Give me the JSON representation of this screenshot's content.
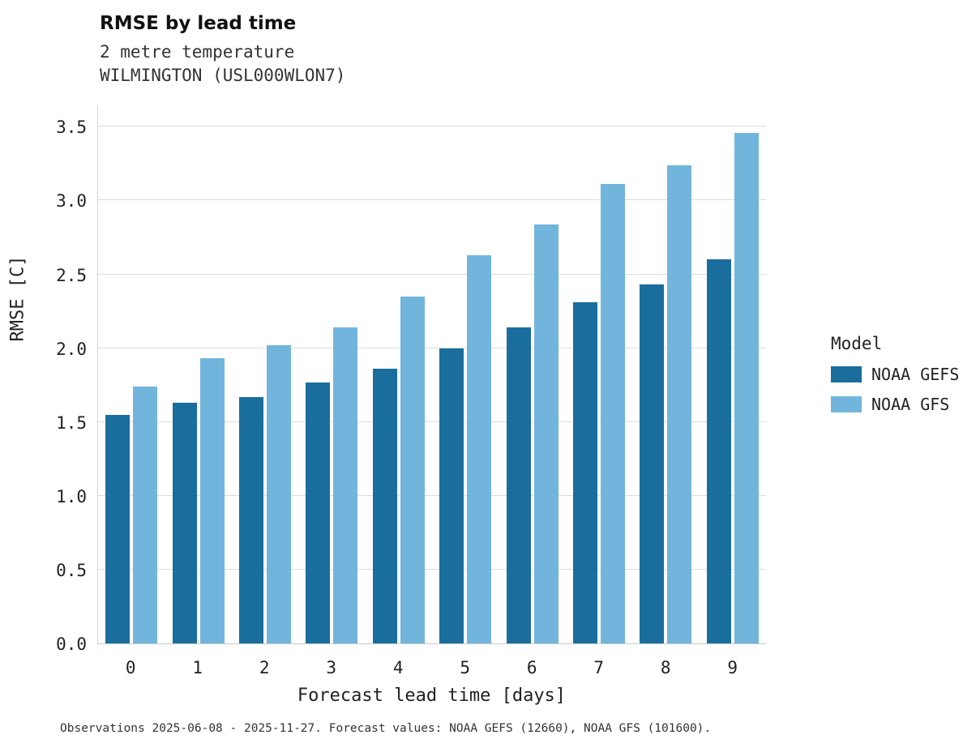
{
  "title": "RMSE by lead time",
  "subtitle_line1": "2 metre temperature",
  "subtitle_line2": "WILMINGTON (USL000WLON7)",
  "footnote": "Observations 2025-06-08 - 2025-11-27. Forecast values: NOAA GEFS (12660), NOAA GFS (101600).",
  "legend": {
    "title": "Model"
  },
  "colors": {
    "gefs": "#1a6e9e",
    "gfs": "#72b5dc",
    "grid": "#dcdcdc",
    "text": "#222222"
  },
  "chart_data": {
    "type": "bar",
    "title": "RMSE by lead time",
    "subtitle": "2 metre temperature — WILMINGTON (USL000WLON7)",
    "xlabel": "Forecast lead time [days]",
    "ylabel": "RMSE [C]",
    "categories": [
      "0",
      "1",
      "2",
      "3",
      "4",
      "5",
      "6",
      "7",
      "8",
      "9"
    ],
    "series": [
      {
        "name": "NOAA GEFS",
        "color": "#1a6e9e",
        "values": [
          1.55,
          1.63,
          1.67,
          1.77,
          1.86,
          2.0,
          2.14,
          2.31,
          2.43,
          2.6
        ]
      },
      {
        "name": "NOAA GFS",
        "color": "#72b5dc",
        "values": [
          1.74,
          1.93,
          2.02,
          2.14,
          2.35,
          2.63,
          2.84,
          3.11,
          3.24,
          3.46
        ]
      }
    ],
    "ylim": [
      0,
      3.65
    ],
    "yticks": [
      0.0,
      0.5,
      1.0,
      1.5,
      2.0,
      2.5,
      3.0,
      3.5
    ],
    "grid": true,
    "legend_position": "right"
  }
}
